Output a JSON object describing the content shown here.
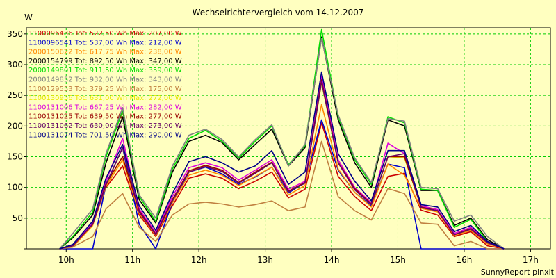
{
  "chart_data": {
    "type": "line",
    "title": "Wechselrichtervergleich vom 14.12.2007",
    "ylabel": "W",
    "xlabel": "",
    "footer": "SunnyReport pinxit",
    "ylim": [
      0,
      360
    ],
    "xlim": [
      9.4,
      17.3
    ],
    "yticks": [
      0,
      50,
      100,
      150,
      200,
      250,
      300,
      350
    ],
    "xticks": [
      {
        "v": 10,
        "label": "10h"
      },
      {
        "v": 11,
        "label": "11h"
      },
      {
        "v": 12,
        "label": "12h"
      },
      {
        "v": 13,
        "label": "13h"
      },
      {
        "v": 14,
        "label": "14h"
      },
      {
        "v": 15,
        "label": "15h"
      },
      {
        "v": 16,
        "label": "16h"
      },
      {
        "v": 17,
        "label": "17h"
      }
    ],
    "grid": true,
    "legend_position": "top-left",
    "x": [
      9.9,
      10.1,
      10.4,
      10.6,
      10.85,
      11.1,
      11.35,
      11.6,
      11.85,
      12.1,
      12.35,
      12.6,
      12.85,
      13.1,
      13.35,
      13.6,
      13.85,
      14.1,
      14.35,
      14.6,
      14.85,
      15.1,
      15.35,
      15.6,
      15.85,
      16.1,
      16.35,
      16.6
    ],
    "series": [
      {
        "name": "1100096436",
        "legend": "1100096436 Tot: 522,50 Wh Max: 207,00 W",
        "color": "#cc0000",
        "values": [
          0,
          5,
          40,
          100,
          135,
          55,
          20,
          70,
          115,
          122,
          115,
          98,
          110,
          125,
          83,
          97,
          205,
          118,
          85,
          62,
          118,
          123,
          63,
          55,
          20,
          28,
          5,
          0
        ]
      },
      {
        "name": "1100096541",
        "legend": "1100096541 Tot: 537,00 Wh Max: 212,00 W",
        "color": "#0000cc",
        "values": [
          0,
          0,
          0,
          105,
          165,
          40,
          0,
          75,
          125,
          133,
          122,
          105,
          117,
          133,
          91,
          108,
          210,
          128,
          92,
          70,
          138,
          132,
          0,
          0,
          0,
          0,
          0,
          0
        ]
      },
      {
        "name": "2000150622",
        "legend": "2000150622 Tot: 617,75 Wh Max: 238,00 W",
        "color": "#ff8800",
        "values": [
          0,
          3,
          38,
          102,
          145,
          58,
          22,
          75,
          120,
          128,
          120,
          103,
          118,
          133,
          88,
          103,
          235,
          130,
          92,
          68,
          138,
          120,
          66,
          60,
          22,
          30,
          8,
          0
        ]
      },
      {
        "name": "2000154799",
        "legend": "2000154799 Tot: 892,50 Wh Max: 347,00 W",
        "color": "#000000",
        "values": [
          0,
          18,
          55,
          140,
          215,
          80,
          42,
          125,
          175,
          185,
          173,
          145,
          170,
          195,
          135,
          165,
          345,
          210,
          140,
          100,
          210,
          200,
          95,
          95,
          38,
          50,
          15,
          0
        ]
      },
      {
        "name": "2000149801",
        "legend": "2000149801 Tot: 911,50 Wh Max: 359,00 W",
        "color": "#00dd00",
        "values": [
          0,
          20,
          60,
          150,
          225,
          85,
          45,
          130,
          180,
          193,
          175,
          148,
          175,
          200,
          137,
          168,
          357,
          215,
          145,
          105,
          215,
          205,
          97,
          95,
          35,
          48,
          12,
          0
        ]
      },
      {
        "name": "2000149852",
        "legend": "2000149852 Tot: 932,00 Wh Max: 343,00 W",
        "color": "#808080",
        "values": [
          0,
          25,
          65,
          155,
          230,
          88,
          50,
          135,
          185,
          195,
          178,
          150,
          178,
          202,
          135,
          170,
          343,
          218,
          148,
          108,
          212,
          208,
          100,
          98,
          45,
          55,
          20,
          0
        ]
      },
      {
        "name": "1100129553",
        "legend": "1100129553 Tot: 379,25 Wh Max: 175,00 W",
        "color": "#c08040",
        "values": [
          0,
          3,
          20,
          65,
          90,
          35,
          12,
          55,
          73,
          76,
          73,
          68,
          72,
          78,
          62,
          68,
          175,
          85,
          62,
          47,
          98,
          90,
          42,
          40,
          5,
          12,
          0,
          0
        ]
      },
      {
        "name": "1100130956",
        "legend": "1100130956 Tot: 631,00 Wh Max: 272,00 W",
        "color": "#e8e800",
        "values": [
          0,
          5,
          40,
          105,
          150,
          62,
          25,
          80,
          125,
          135,
          127,
          108,
          124,
          140,
          93,
          108,
          270,
          140,
          97,
          72,
          150,
          148,
          68,
          62,
          23,
          33,
          10,
          0
        ]
      },
      {
        "name": "1100131006",
        "legend": "1100131006 Tot: 667,25 Wh Max: 282,00 W",
        "color": "#dd00dd",
        "values": [
          0,
          6,
          42,
          110,
          180,
          65,
          26,
          85,
          132,
          140,
          132,
          112,
          128,
          145,
          97,
          110,
          280,
          145,
          100,
          75,
          172,
          155,
          70,
          64,
          25,
          35,
          12,
          0
        ]
      },
      {
        "name": "1100131025",
        "legend": "1100131025 Tot: 639,50 Wh Max: 277,00 W",
        "color": "#990000",
        "values": [
          0,
          5,
          40,
          106,
          150,
          62,
          24,
          80,
          127,
          136,
          128,
          108,
          125,
          141,
          94,
          108,
          275,
          141,
          98,
          73,
          150,
          150,
          68,
          62,
          23,
          33,
          10,
          0
        ]
      },
      {
        "name": "1100131062",
        "legend": "1100131062 Tot: 630,00 Wh Max: 273,00 W",
        "color": "#660066",
        "values": [
          0,
          5,
          40,
          104,
          165,
          60,
          23,
          78,
          125,
          134,
          126,
          107,
          123,
          140,
          93,
          107,
          272,
          140,
          96,
          72,
          150,
          155,
          67,
          62,
          23,
          32,
          10,
          0
        ]
      },
      {
        "name": "1100131074",
        "legend": "1100131074 Tot: 701,50 Wh Max: 290,00 W",
        "color": "#000088",
        "values": [
          0,
          7,
          45,
          115,
          170,
          70,
          30,
          90,
          142,
          150,
          140,
          125,
          135,
          160,
          105,
          125,
          288,
          155,
          110,
          78,
          160,
          160,
          72,
          68,
          28,
          38,
          12,
          0
        ]
      }
    ]
  }
}
